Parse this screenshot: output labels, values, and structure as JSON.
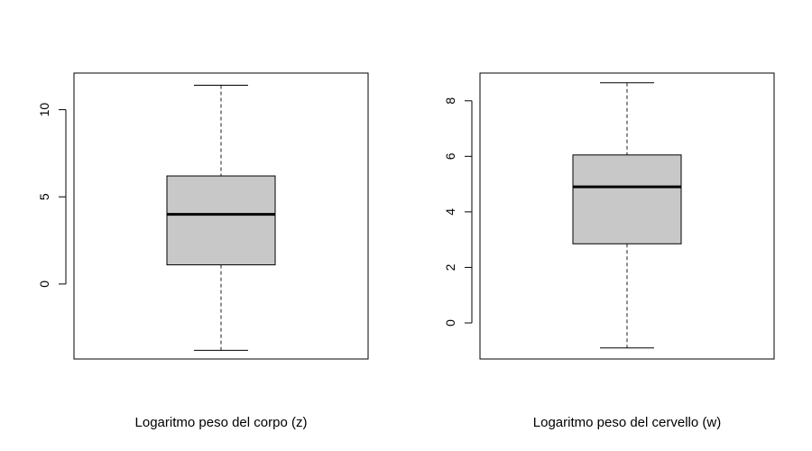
{
  "colors": {
    "box_fill": "#c8c8c8",
    "stroke": "#000000",
    "background": "#ffffff"
  },
  "chart_data": [
    {
      "type": "boxplot",
      "xlabel": "Logaritmo peso del corpo (z)",
      "ylabel": "",
      "title": "",
      "ylim": [
        -4.3,
        12.1
      ],
      "yticks": [
        0,
        5,
        10
      ],
      "ytick_labels": [
        "0",
        "5",
        "10"
      ],
      "box": {
        "whisker_low": -3.8,
        "q1": 1.1,
        "median": 4.0,
        "q3": 6.2,
        "whisker_high": 11.4
      }
    },
    {
      "type": "boxplot",
      "xlabel": "Logaritmo peso del cervello (w)",
      "ylabel": "",
      "title": "",
      "ylim": [
        -1.3,
        9.0
      ],
      "yticks": [
        0,
        2,
        4,
        6,
        8
      ],
      "ytick_labels": [
        "0",
        "2",
        "4",
        "6",
        "8"
      ],
      "box": {
        "whisker_low": -0.9,
        "q1": 2.85,
        "median": 4.9,
        "q3": 6.05,
        "whisker_high": 8.65
      }
    }
  ]
}
